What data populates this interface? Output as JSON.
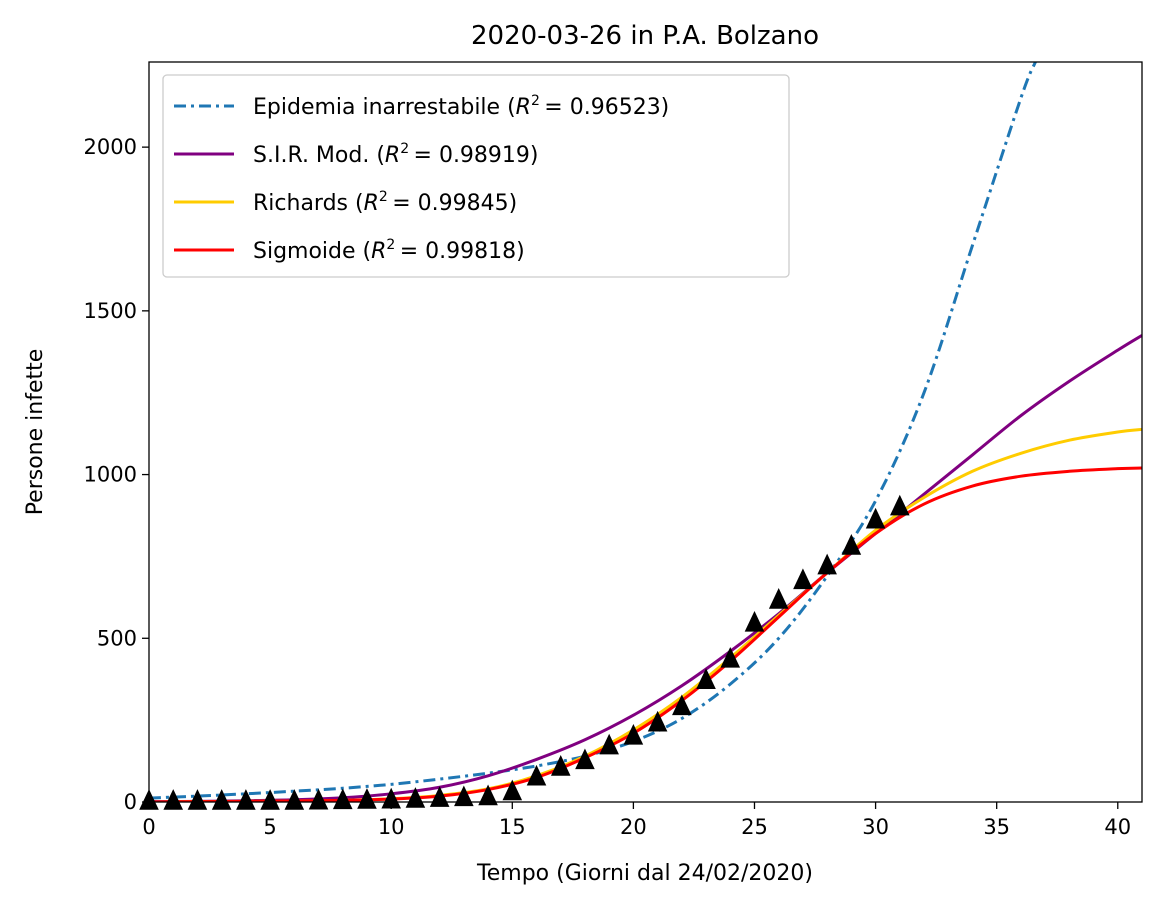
{
  "chart_data": {
    "type": "line",
    "title": "2020-03-26 in P.A. Bolzano",
    "xlabel": "Tempo (Giorni dal 24/02/2020)",
    "ylabel": "Persone infette",
    "xlim": [
      0,
      41
    ],
    "ylim": [
      0,
      2260
    ],
    "xticks": [
      0,
      5,
      10,
      15,
      20,
      25,
      30,
      35,
      40
    ],
    "yticks": [
      0,
      500,
      1000,
      1500,
      2000
    ],
    "grid": false,
    "legend_placement": "upper-left",
    "series": [
      {
        "name": "Epidemia inarrestabile",
        "r2_label": "R",
        "r2_value": "= 0.96523",
        "color": "#1f77b4",
        "dash": "dashdot",
        "x": [
          0,
          2,
          4,
          6,
          8,
          10,
          12,
          14,
          16,
          18,
          20,
          22,
          24,
          26,
          28,
          30,
          32,
          34,
          36,
          36.6
        ],
        "y": [
          12,
          18,
          25,
          33,
          42,
          54,
          70,
          88,
          110,
          140,
          185,
          255,
          360,
          500,
          690,
          920,
          1250,
          1700,
          2150,
          2260
        ]
      },
      {
        "name": "S.I.R. Mod.",
        "r2_label": "R",
        "r2_value": "= 0.98919",
        "color": "#800080",
        "dash": "solid",
        "x": [
          0,
          2,
          4,
          6,
          8,
          10,
          12,
          14,
          16,
          18,
          20,
          22,
          24,
          26,
          28,
          30,
          32,
          34,
          36,
          38,
          40,
          41
        ],
        "y": [
          1,
          2,
          4,
          7,
          13,
          25,
          45,
          80,
          130,
          190,
          265,
          355,
          460,
          575,
          700,
          820,
          940,
          1060,
          1180,
          1285,
          1380,
          1425
        ]
      },
      {
        "name": "Richards",
        "r2_label": "R",
        "r2_value": "= 0.99845",
        "color": "#ffcc00",
        "dash": "solid",
        "x": [
          0,
          2,
          4,
          6,
          8,
          10,
          12,
          14,
          16,
          18,
          20,
          22,
          24,
          26,
          28,
          30,
          32,
          34,
          36,
          38,
          40,
          41
        ],
        "y": [
          0,
          1,
          2,
          3,
          5,
          10,
          20,
          40,
          80,
          140,
          220,
          320,
          440,
          570,
          700,
          830,
          930,
          1010,
          1065,
          1105,
          1130,
          1138
        ]
      },
      {
        "name": "Sigmoide",
        "r2_label": "R",
        "r2_value": "= 0.99818",
        "color": "#ff0000",
        "dash": "solid",
        "x": [
          0,
          2,
          4,
          6,
          8,
          10,
          12,
          14,
          16,
          18,
          20,
          22,
          24,
          26,
          28,
          30,
          32,
          34,
          36,
          38,
          40,
          41
        ],
        "y": [
          0,
          1,
          2,
          3,
          5,
          9,
          18,
          38,
          75,
          135,
          210,
          310,
          430,
          565,
          700,
          820,
          910,
          965,
          995,
          1010,
          1018,
          1020
        ]
      },
      {
        "name": "Dati",
        "color": "#000000",
        "marker": "triangle",
        "x": [
          0,
          1,
          2,
          3,
          4,
          5,
          6,
          7,
          8,
          9,
          10,
          11,
          12,
          13,
          14,
          15,
          16,
          17,
          18,
          19,
          20,
          21,
          22,
          23,
          24,
          25,
          26,
          27,
          28,
          29,
          30,
          31
        ],
        "y": [
          1,
          1,
          1,
          1,
          1,
          1,
          1,
          2,
          3,
          4,
          5,
          7,
          10,
          12,
          15,
          30,
          75,
          105,
          125,
          170,
          200,
          240,
          290,
          370,
          435,
          545,
          615,
          675,
          720,
          780,
          860,
          900
        ]
      }
    ]
  }
}
